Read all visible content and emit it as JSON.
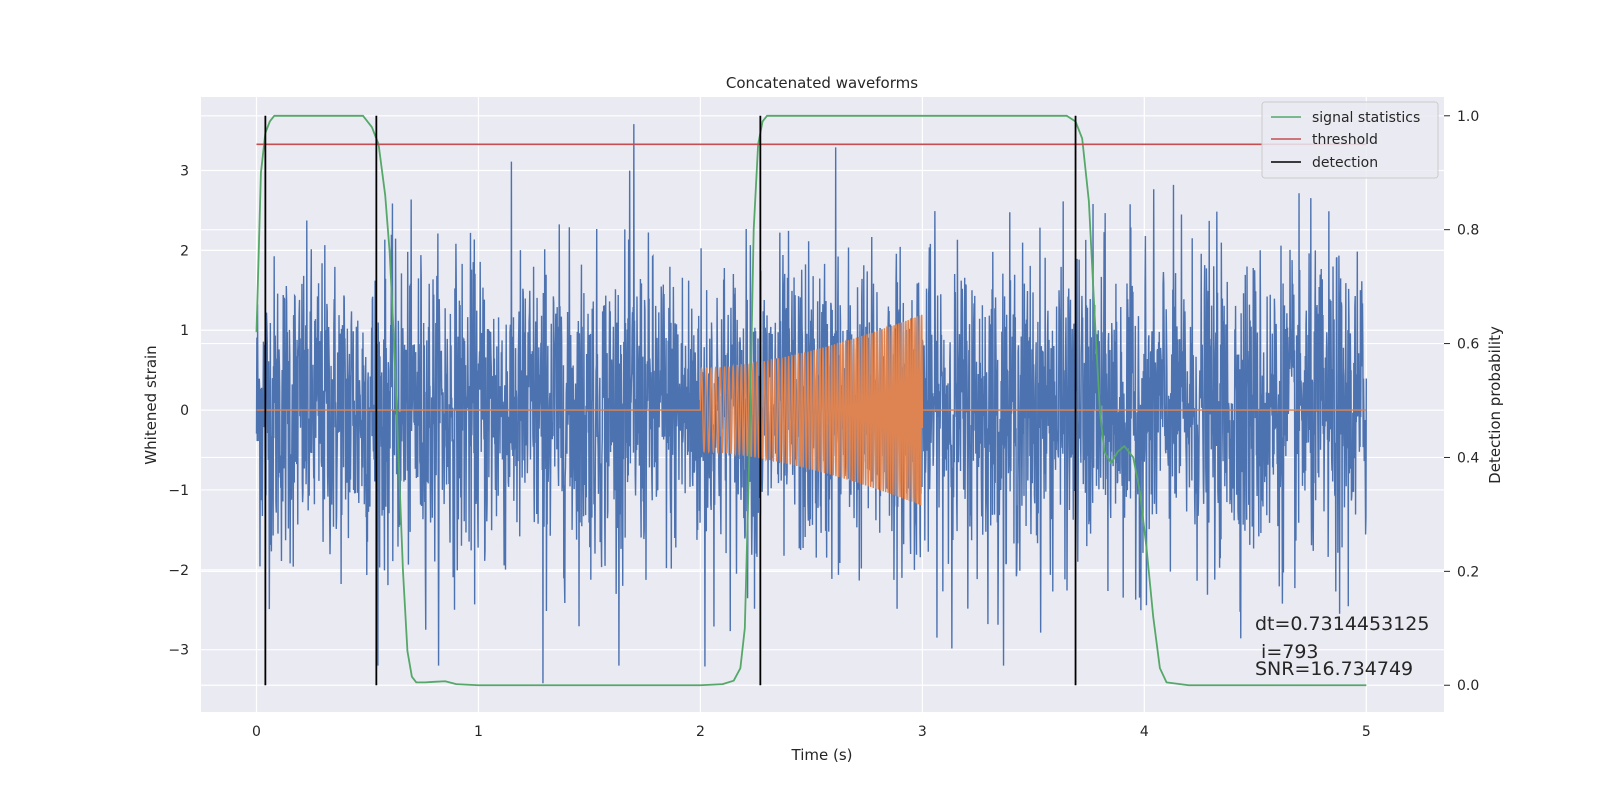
{
  "chart_data": {
    "type": "line",
    "title": "Concatenated waveforms",
    "xlabel": "Time (s)",
    "ylabel_left": "Whitened strain",
    "ylabel_right": "Detection probability",
    "xlim": [
      -0.25,
      5.35
    ],
    "ylim_left": [
      -3.78,
      3.92
    ],
    "ylim_right": [
      -0.047,
      1.033
    ],
    "x_ticks": [
      0,
      1,
      2,
      3,
      4,
      5
    ],
    "x_tick_labels": [
      "0",
      "1",
      "2",
      "3",
      "4",
      "5"
    ],
    "y_left_ticks": [
      -3,
      -2,
      -1,
      0,
      1,
      2,
      3
    ],
    "y_left_tick_labels": [
      "−3",
      "−2",
      "−1",
      "0",
      "1",
      "2",
      "3"
    ],
    "y_right_ticks": [
      0.0,
      0.2,
      0.4,
      0.6,
      0.8,
      1.0
    ],
    "y_right_tick_labels": [
      "0.0",
      "0.2",
      "0.4",
      "0.6",
      "0.8",
      "1.0"
    ],
    "grid": true,
    "legend_position": "top-right",
    "legend": [
      "signal statistics",
      "threshold",
      "detection"
    ],
    "series": [
      {
        "kind": "noise",
        "axis": "left",
        "color": "#4c72b0",
        "x_range": [
          0,
          5
        ],
        "approx_std": 0.95,
        "peak_samples": [
          [
            1.7,
            3.58
          ],
          [
            1.29,
            -3.42
          ],
          [
            2.61,
            3.29
          ],
          [
            2.02,
            -3.21
          ],
          [
            4.88,
            -2.55
          ]
        ]
      },
      {
        "kind": "chirp",
        "axis": "left",
        "color": "#dd8452",
        "x_range": [
          2.0,
          3.0
        ],
        "amplitude_start": 0.52,
        "amplitude_end": 1.2,
        "frequency_start_hz": 45,
        "frequency_end_hz": 100
      },
      {
        "name": "signal statistics",
        "axis": "right",
        "color": "#55a868",
        "x": [
          0,
          0.02,
          0.04,
          0.06,
          0.08,
          0.1,
          0.2,
          0.3,
          0.4,
          0.48,
          0.52,
          0.55,
          0.58,
          0.6,
          0.62,
          0.64,
          0.66,
          0.68,
          0.7,
          0.72,
          0.76,
          0.8,
          0.85,
          0.9,
          1.0,
          1.5,
          2.0,
          2.1,
          2.15,
          2.18,
          2.2,
          2.22,
          2.24,
          2.26,
          2.28,
          2.3,
          2.35,
          2.5,
          3.0,
          3.5,
          3.65,
          3.69,
          3.72,
          3.75,
          3.78,
          3.8,
          3.82,
          3.85,
          3.88,
          3.91,
          3.95,
          3.98,
          4.01,
          4.04,
          4.07,
          4.1,
          4.2,
          4.5,
          5.0
        ],
        "y": [
          0.62,
          0.9,
          0.97,
          0.99,
          1.0,
          1.0,
          1.0,
          1.0,
          1.0,
          1.0,
          0.98,
          0.95,
          0.86,
          0.76,
          0.6,
          0.4,
          0.2,
          0.06,
          0.015,
          0.005,
          0.005,
          0.006,
          0.007,
          0.002,
          0.0,
          0.0,
          0.0,
          0.002,
          0.008,
          0.03,
          0.1,
          0.4,
          0.8,
          0.95,
          0.99,
          1.0,
          1.0,
          1.0,
          1.0,
          1.0,
          1.0,
          0.99,
          0.96,
          0.85,
          0.62,
          0.48,
          0.41,
          0.39,
          0.41,
          0.42,
          0.4,
          0.34,
          0.24,
          0.12,
          0.03,
          0.005,
          0.0,
          0.0,
          0.0
        ]
      },
      {
        "name": "threshold",
        "axis": "right",
        "color": "#c44e52",
        "x": [
          0,
          5
        ],
        "y": [
          0.95,
          0.95
        ]
      },
      {
        "name": "detection",
        "axis": "right",
        "color": "#000000",
        "kind": "vlines",
        "x": [
          0.04,
          0.54,
          2.27,
          3.69
        ],
        "y_range": [
          0.0,
          1.0
        ]
      }
    ],
    "annotations": [
      "dt=0.7314453125",
      " i=793",
      "SNR=16.734749"
    ]
  }
}
